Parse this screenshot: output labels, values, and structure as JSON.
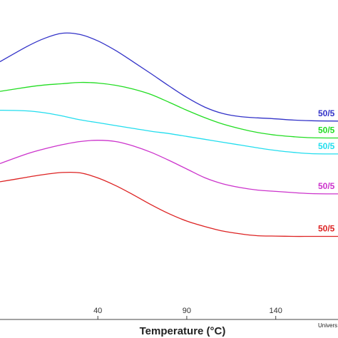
{
  "chart_data": {
    "type": "line",
    "title": "",
    "xlabel": "Temperature (°C)",
    "ylabel": "",
    "xlim": [
      -15,
      175
    ],
    "ylim": [
      0,
      100
    ],
    "xticks": [
      40,
      90,
      140
    ],
    "tick_labels": [
      "40",
      "90",
      "140"
    ],
    "grid": false,
    "legend": "none",
    "series": [
      {
        "label": "50/5",
        "color": "#3232c8",
        "x": [
          -15,
          0,
          10,
          20,
          30,
          40,
          50,
          60,
          70,
          80,
          90,
          100,
          110,
          120,
          130,
          140,
          150,
          160,
          175
        ],
        "y": [
          80.7,
          85.4,
          88.0,
          89.6,
          89.2,
          87.2,
          84.2,
          80.6,
          76.9,
          73.1,
          69.5,
          66.5,
          64.5,
          63.5,
          63.1,
          62.8,
          62.4,
          62.2,
          62.1
        ]
      },
      {
        "label": "50/5",
        "color": "#22dd22",
        "x": [
          -15,
          0,
          10,
          20,
          30,
          40,
          50,
          60,
          70,
          80,
          90,
          100,
          110,
          120,
          130,
          140,
          150,
          160,
          175
        ],
        "y": [
          71.4,
          72.7,
          73.4,
          73.8,
          74.2,
          74.0,
          73.3,
          72.1,
          70.4,
          68.0,
          65.5,
          63.2,
          61.2,
          59.7,
          58.5,
          57.7,
          57.2,
          56.9,
          56.8
        ]
      },
      {
        "label": "50/5",
        "color": "#22ddee",
        "x": [
          -15,
          0,
          10,
          20,
          30,
          40,
          50,
          60,
          70,
          80,
          90,
          100,
          110,
          120,
          130,
          140,
          150,
          160,
          175
        ],
        "y": [
          65.5,
          65.3,
          64.7,
          63.7,
          62.5,
          61.6,
          60.7,
          59.8,
          58.9,
          58.2,
          57.3,
          56.4,
          55.5,
          54.6,
          53.7,
          52.9,
          52.3,
          51.9,
          51.8
        ]
      },
      {
        "label": "50/5",
        "color": "#cc33cc",
        "x": [
          -15,
          0,
          10,
          20,
          30,
          40,
          50,
          60,
          70,
          80,
          90,
          100,
          110,
          120,
          130,
          140,
          150,
          160,
          175
        ],
        "y": [
          48.8,
          51.8,
          53.4,
          54.7,
          55.7,
          56.1,
          55.7,
          54.3,
          52.3,
          49.8,
          47.1,
          44.4,
          42.5,
          41.3,
          40.5,
          40.1,
          39.7,
          39.4,
          39.3
        ]
      },
      {
        "label": "50/5",
        "color": "#dd2222",
        "x": [
          -15,
          0,
          10,
          20,
          30,
          40,
          50,
          60,
          70,
          80,
          90,
          100,
          110,
          120,
          130,
          140,
          150,
          160,
          175
        ],
        "y": [
          43.1,
          44.5,
          45.4,
          46.0,
          45.9,
          44.3,
          41.9,
          39.0,
          35.9,
          33.1,
          30.8,
          29.1,
          27.7,
          26.8,
          26.2,
          26.1,
          26.0,
          26.0,
          26.0
        ]
      }
    ],
    "watermark": "Univers"
  }
}
